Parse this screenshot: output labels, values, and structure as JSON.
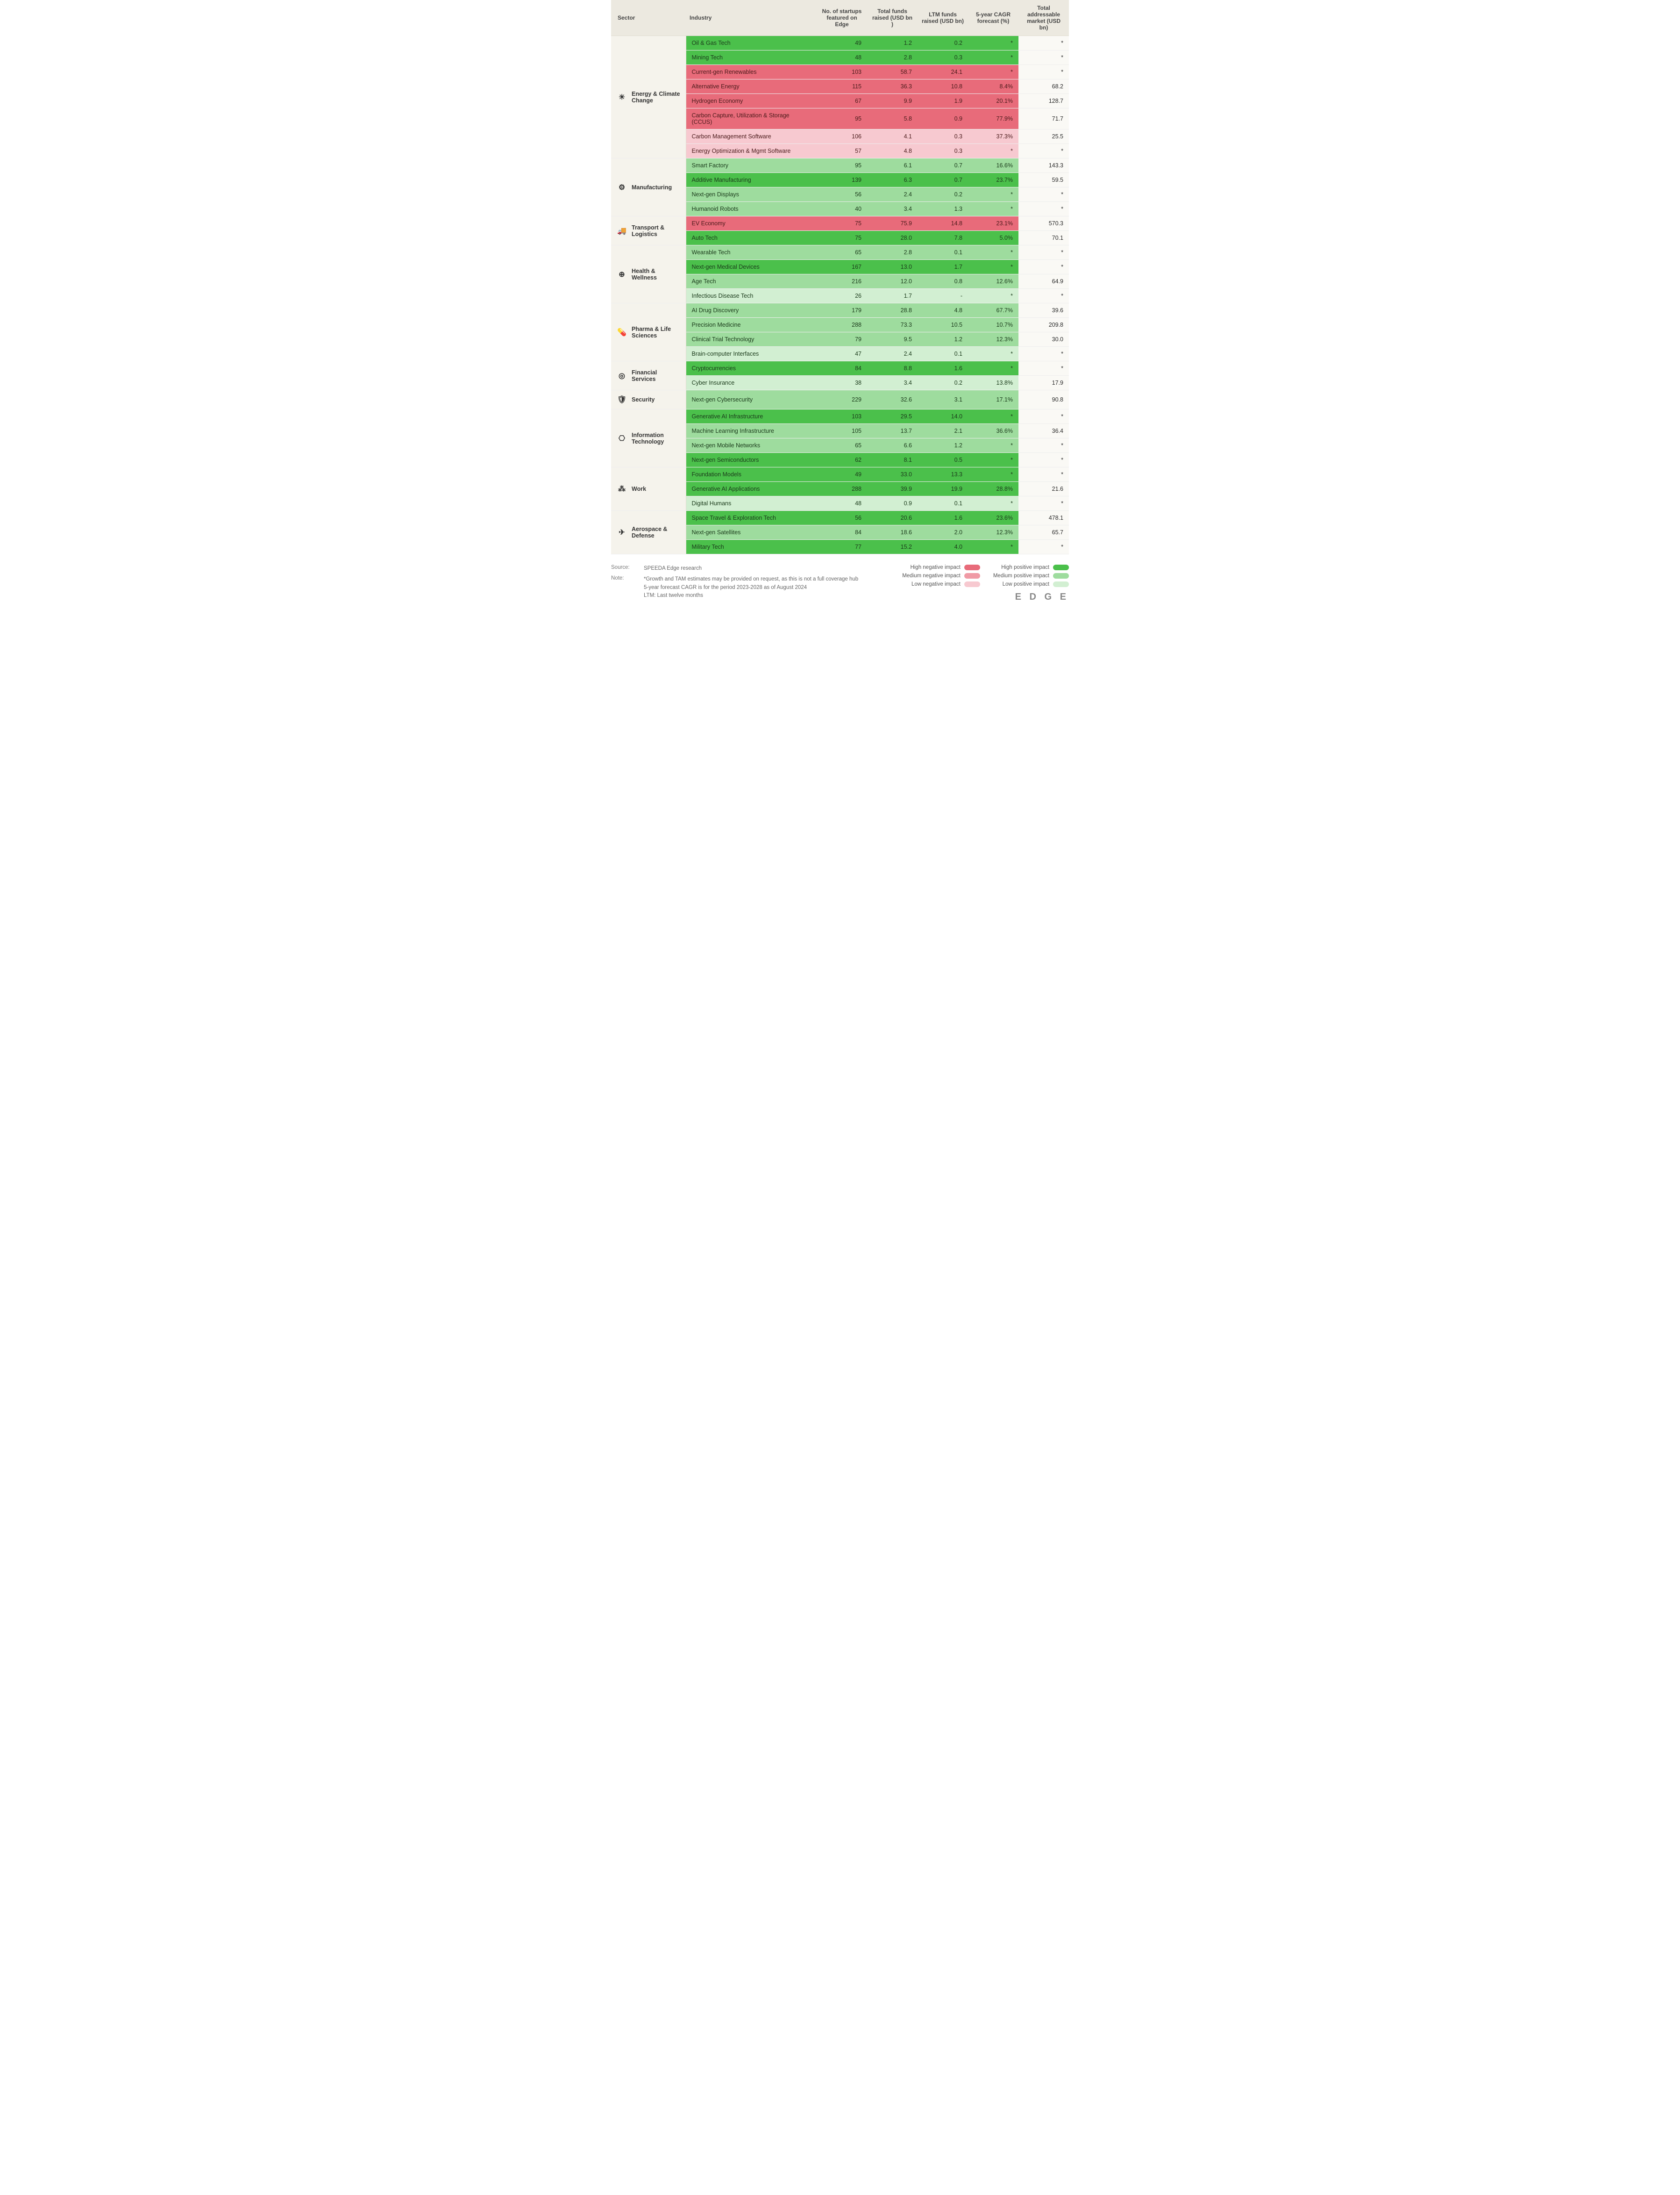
{
  "columns": [
    "Sector",
    "Industry",
    "No. of startups featured on Edge",
    "Total funds raised (USD bn )",
    "LTM funds raised (USD bn)",
    "5-year CAGR forecast (%)",
    "Total addressable market (USD bn)"
  ],
  "impact_classes": {
    "hp": "#4bc04b",
    "mp": "#9edc9e",
    "lp": "#d2efd2",
    "hn": "#e86b7a",
    "mn": "#f09aa5",
    "ln": "#f7c9d0"
  },
  "sectors": [
    {
      "name": "Energy & Climate Change",
      "icon": "☀",
      "rows": [
        {
          "industry": "Oil & Gas Tech",
          "startups": "49",
          "total": "1.2",
          "ltm": "0.2",
          "cagr": "*",
          "tam": "*",
          "impact": "hp"
        },
        {
          "industry": "Mining Tech",
          "startups": "48",
          "total": "2.8",
          "ltm": "0.3",
          "cagr": "*",
          "tam": "*",
          "impact": "hp"
        },
        {
          "industry": "Current-gen Renewables",
          "startups": "103",
          "total": "58.7",
          "ltm": "24.1",
          "cagr": "*",
          "tam": "*",
          "impact": "hn"
        },
        {
          "industry": "Alternative Energy",
          "startups": "115",
          "total": "36.3",
          "ltm": "10.8",
          "cagr": "8.4%",
          "tam": "68.2",
          "impact": "hn"
        },
        {
          "industry": "Hydrogen Economy",
          "startups": "67",
          "total": "9.9",
          "ltm": "1.9",
          "cagr": "20.1%",
          "tam": "128.7",
          "impact": "hn"
        },
        {
          "industry": "Carbon Capture, Utilization & Storage (CCUS)",
          "startups": "95",
          "total": "5.8",
          "ltm": "0.9",
          "cagr": "77.9%",
          "tam": "71.7",
          "impact": "hn"
        },
        {
          "industry": "Carbon Management Software",
          "startups": "106",
          "total": "4.1",
          "ltm": "0.3",
          "cagr": "37.3%",
          "tam": "25.5",
          "impact": "ln"
        },
        {
          "industry": "Energy Optimization & Mgmt Software",
          "startups": "57",
          "total": "4.8",
          "ltm": "0.3",
          "cagr": "*",
          "tam": "*",
          "impact": "ln"
        }
      ]
    },
    {
      "name": "Manufacturing",
      "icon": "⚙",
      "rows": [
        {
          "industry": "Smart Factory",
          "startups": "95",
          "total": "6.1",
          "ltm": "0.7",
          "cagr": "16.6%",
          "tam": "143.3",
          "impact": "mp"
        },
        {
          "industry": "Additive Manufacturing",
          "startups": "139",
          "total": "6.3",
          "ltm": "0.7",
          "cagr": "23.7%",
          "tam": "59.5",
          "impact": "hp"
        },
        {
          "industry": "Next-gen Displays",
          "startups": "56",
          "total": "2.4",
          "ltm": "0.2",
          "cagr": "*",
          "tam": "*",
          "impact": "mp"
        },
        {
          "industry": "Humanoid Robots",
          "startups": "40",
          "total": "3.4",
          "ltm": "1.3",
          "cagr": "*",
          "tam": "*",
          "impact": "mp"
        }
      ]
    },
    {
      "name": "Transport & Logistics",
      "icon": "🚚",
      "rows": [
        {
          "industry": "EV Economy",
          "startups": "75",
          "total": "75.9",
          "ltm": "14.8",
          "cagr": "23.1%",
          "tam": "570.3",
          "impact": "hn"
        },
        {
          "industry": "Auto Tech",
          "startups": "75",
          "total": "28.0",
          "ltm": "7.8",
          "cagr": "5.0%",
          "tam": "70.1",
          "impact": "hp"
        }
      ]
    },
    {
      "name": "Health & Wellness",
      "icon": "⊕",
      "rows": [
        {
          "industry": "Wearable Tech",
          "startups": "65",
          "total": "2.8",
          "ltm": "0.1",
          "cagr": "*",
          "tam": "*",
          "impact": "mp"
        },
        {
          "industry": "Next-gen Medical Devices",
          "startups": "167",
          "total": "13.0",
          "ltm": "1.7",
          "cagr": "*",
          "tam": "*",
          "impact": "hp"
        },
        {
          "industry": "Age Tech",
          "startups": "216",
          "total": "12.0",
          "ltm": "0.8",
          "cagr": "12.6%",
          "tam": "64.9",
          "impact": "mp"
        },
        {
          "industry": "Infectious Disease Tech",
          "startups": "26",
          "total": "1.7",
          "ltm": "-",
          "cagr": "*",
          "tam": "*",
          "impact": "lp"
        }
      ]
    },
    {
      "name": "Pharma & Life Sciences",
      "icon": "💊",
      "rows": [
        {
          "industry": "AI Drug Discovery",
          "startups": "179",
          "total": "28.8",
          "ltm": "4.8",
          "cagr": "67.7%",
          "tam": "39.6",
          "impact": "mp"
        },
        {
          "industry": "Precision Medicine",
          "startups": "288",
          "total": "73.3",
          "ltm": "10.5",
          "cagr": "10.7%",
          "tam": "209.8",
          "impact": "mp"
        },
        {
          "industry": "Clinical Trial Technology",
          "startups": "79",
          "total": "9.5",
          "ltm": "1.2",
          "cagr": "12.3%",
          "tam": "30.0",
          "impact": "mp"
        },
        {
          "industry": "Brain-computer Interfaces",
          "startups": "47",
          "total": "2.4",
          "ltm": "0.1",
          "cagr": "*",
          "tam": "*",
          "impact": "lp"
        }
      ]
    },
    {
      "name": "Financial Services",
      "icon": "◎",
      "rows": [
        {
          "industry": "Cryptocurrencies",
          "startups": "84",
          "total": "8.8",
          "ltm": "1.6",
          "cagr": "*",
          "tam": "*",
          "impact": "hp"
        },
        {
          "industry": "Cyber Insurance",
          "startups": "38",
          "total": "3.4",
          "ltm": "0.2",
          "cagr": "13.8%",
          "tam": "17.9",
          "impact": "lp"
        }
      ]
    },
    {
      "name": "Security",
      "icon": "🛡",
      "rows": [
        {
          "industry": "Next-gen Cybersecurity",
          "startups": "229",
          "total": "32.6",
          "ltm": "3.1",
          "cagr": "17.1%",
          "tam": "90.8",
          "impact": "mp"
        }
      ]
    },
    {
      "name": "Information Technology",
      "icon": "⎔",
      "rows": [
        {
          "industry": "Generative AI Infrastructure",
          "startups": "103",
          "total": "29.5",
          "ltm": "14.0",
          "cagr": "*",
          "tam": "*",
          "impact": "hp"
        },
        {
          "industry": "Machine Learning Infrastructure",
          "startups": "105",
          "total": "13.7",
          "ltm": "2.1",
          "cagr": "36.6%",
          "tam": "36.4",
          "impact": "mp"
        },
        {
          "industry": "Next-gen Mobile Networks",
          "startups": "65",
          "total": "6.6",
          "ltm": "1.2",
          "cagr": "*",
          "tam": "*",
          "impact": "mp"
        },
        {
          "industry": "Next-gen Semiconductors",
          "startups": "62",
          "total": "8.1",
          "ltm": "0.5",
          "cagr": "*",
          "tam": "*",
          "impact": "hp"
        }
      ]
    },
    {
      "name": "Work",
      "icon": "⁂",
      "rows": [
        {
          "industry": "Foundation Models",
          "startups": "49",
          "total": "33.0",
          "ltm": "13.3",
          "cagr": "*",
          "tam": "*",
          "impact": "hp"
        },
        {
          "industry": "Generative AI Applications",
          "startups": "288",
          "total": "39.9",
          "ltm": "19.9",
          "cagr": "28.8%",
          "tam": "21.6",
          "impact": "hp"
        },
        {
          "industry": "Digital Humans",
          "startups": "48",
          "total": "0.9",
          "ltm": "0.1",
          "cagr": "*",
          "tam": "*",
          "impact": "lp"
        }
      ]
    },
    {
      "name": "Aerospace & Defense",
      "icon": "✈",
      "rows": [
        {
          "industry": "Space Travel & Exploration Tech",
          "startups": "56",
          "total": "20.6",
          "ltm": "1.6",
          "cagr": "23.6%",
          "tam": "478.1",
          "impact": "hp"
        },
        {
          "industry": "Next-gen Satellites",
          "startups": "84",
          "total": "18.6",
          "ltm": "2.0",
          "cagr": "12.3%",
          "tam": "65.7",
          "impact": "mp"
        },
        {
          "industry": "Military Tech",
          "startups": "77",
          "total": "15.2",
          "ltm": "4.0",
          "cagr": "*",
          "tam": "*",
          "impact": "hp"
        }
      ]
    }
  ],
  "legend": {
    "neg": [
      {
        "label": "High negative impact",
        "cls": "hn"
      },
      {
        "label": "Medium negative impact",
        "cls": "mn"
      },
      {
        "label": "Low negative impact",
        "cls": "ln"
      }
    ],
    "pos": [
      {
        "label": "High positive impact",
        "cls": "hp"
      },
      {
        "label": "Medium positive impact",
        "cls": "mp"
      },
      {
        "label": "Low positive impact",
        "cls": "lp"
      }
    ]
  },
  "footer": {
    "source_label": "Source:",
    "source_text": "SPEEDA Edge research",
    "note_label": "Note:",
    "note_text": "*Growth and TAM estimates may be provided on request, as this is not a full coverage hub\n5-year forecast CAGR is for the period 2023-2028 as of August 2024\nLTM: Last twelve months",
    "brand": "E D G E"
  }
}
